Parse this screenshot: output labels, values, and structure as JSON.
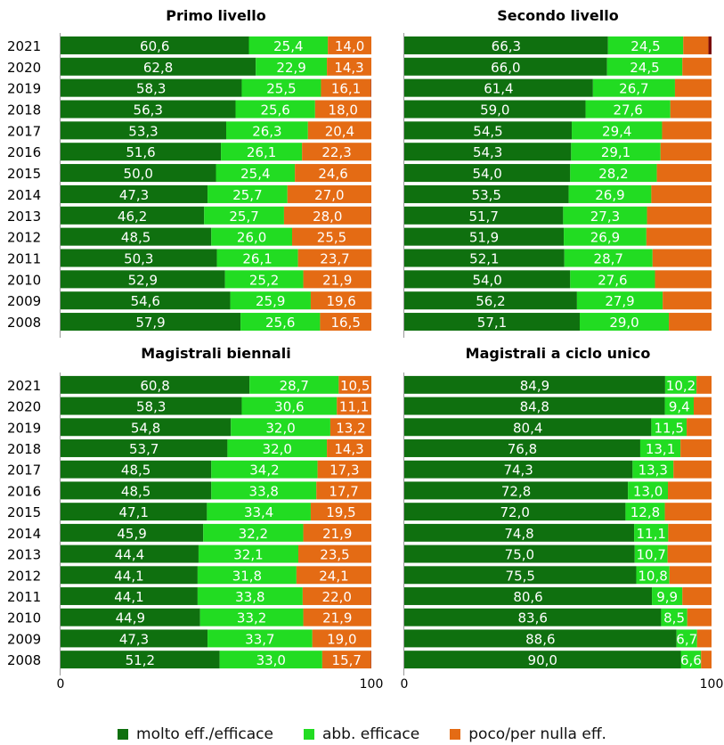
{
  "colors": {
    "molto": "#0f700f",
    "abb": "#22dc22",
    "poco": "#e46b14",
    "rest": "#7a0a0a",
    "bar_label": "#ffffff",
    "text": "#000000",
    "axis": "#9a9a9a"
  },
  "legend": {
    "items": [
      {
        "label": "molto eff./efficace",
        "color": "#0f700f"
      },
      {
        "label": "abb. efficace",
        "color": "#22dc22"
      },
      {
        "label": "poco/per nulla eff.",
        "color": "#e46b14"
      }
    ]
  },
  "chart_data": [
    {
      "type": "bar",
      "orientation": "horizontal-stacked",
      "title": "Primo livello",
      "categories": [
        "2021",
        "2020",
        "2019",
        "2018",
        "2017",
        "2016",
        "2015",
        "2014",
        "2013",
        "2012",
        "2011",
        "2010",
        "2009",
        "2008"
      ],
      "series": [
        {
          "name": "molto eff./efficace",
          "values": [
            60.6,
            62.8,
            58.3,
            56.3,
            53.3,
            51.6,
            50.0,
            47.3,
            46.2,
            48.5,
            50.3,
            52.9,
            54.6,
            57.9
          ]
        },
        {
          "name": "abb. efficace",
          "values": [
            25.4,
            22.9,
            25.5,
            25.6,
            26.3,
            26.1,
            25.4,
            25.7,
            25.7,
            26.0,
            26.1,
            25.2,
            25.9,
            25.6
          ]
        },
        {
          "name": "poco/per nulla eff.",
          "values": [
            14.0,
            14.3,
            16.1,
            18.0,
            20.4,
            22.3,
            24.6,
            27.0,
            28.0,
            25.5,
            23.7,
            21.9,
            19.6,
            16.5
          ]
        }
      ],
      "xlim": [
        0,
        100
      ],
      "xticks": []
    },
    {
      "type": "bar",
      "orientation": "horizontal-stacked",
      "title": "Secondo livello",
      "categories": [
        "2021",
        "2020",
        "2019",
        "2018",
        "2017",
        "2016",
        "2015",
        "2014",
        "2013",
        "2012",
        "2011",
        "2010",
        "2009",
        "2008"
      ],
      "series": [
        {
          "name": "molto eff./efficace",
          "values": [
            66.3,
            66.0,
            61.4,
            59.0,
            54.5,
            54.3,
            54.0,
            53.5,
            51.7,
            51.9,
            52.1,
            54.0,
            56.2,
            57.1
          ]
        },
        {
          "name": "abb. efficace",
          "values": [
            24.5,
            24.5,
            26.7,
            27.6,
            29.4,
            29.1,
            28.2,
            26.9,
            27.3,
            26.9,
            28.7,
            27.6,
            27.9,
            29.0
          ]
        },
        {
          "name": "poco/per nulla eff.",
          "values": [
            8.2,
            9.5,
            11.9,
            13.4,
            16.1,
            16.6,
            17.8,
            19.6,
            21.0,
            21.2,
            19.2,
            18.4,
            15.9,
            13.9
          ],
          "show_labels": false
        }
      ],
      "xlim": [
        0,
        100
      ],
      "xticks": []
    },
    {
      "type": "bar",
      "orientation": "horizontal-stacked",
      "title": "Magistrali biennali",
      "categories": [
        "2021",
        "2020",
        "2019",
        "2018",
        "2017",
        "2016",
        "2015",
        "2014",
        "2013",
        "2012",
        "2011",
        "2010",
        "2009",
        "2008"
      ],
      "series": [
        {
          "name": "molto eff./efficace",
          "values": [
            60.8,
            58.3,
            54.8,
            53.7,
            48.5,
            48.5,
            47.1,
            45.9,
            44.4,
            44.1,
            44.1,
            44.9,
            47.3,
            51.2
          ]
        },
        {
          "name": "abb. efficace",
          "values": [
            28.7,
            30.6,
            32.0,
            32.0,
            34.2,
            33.8,
            33.4,
            32.2,
            32.1,
            31.8,
            33.8,
            33.2,
            33.7,
            33.0
          ]
        },
        {
          "name": "poco/per nulla eff.",
          "values": [
            10.5,
            11.1,
            13.2,
            14.3,
            17.3,
            17.7,
            19.5,
            21.9,
            23.5,
            24.1,
            22.0,
            21.9,
            19.0,
            15.7
          ]
        }
      ],
      "xlim": [
        0,
        100
      ],
      "xticks": [
        "0",
        "100"
      ]
    },
    {
      "type": "bar",
      "orientation": "horizontal-stacked",
      "title": "Magistrali a ciclo unico",
      "categories": [
        "2021",
        "2020",
        "2019",
        "2018",
        "2017",
        "2016",
        "2015",
        "2014",
        "2013",
        "2012",
        "2011",
        "2010",
        "2009",
        "2008"
      ],
      "series": [
        {
          "name": "molto eff./efficace",
          "values": [
            84.9,
            84.8,
            80.4,
            76.8,
            74.3,
            72.8,
            72.0,
            74.8,
            75.0,
            75.5,
            80.6,
            83.6,
            88.6,
            90.0
          ]
        },
        {
          "name": "abb. efficace",
          "values": [
            10.2,
            9.4,
            11.5,
            13.1,
            13.3,
            13.0,
            12.8,
            11.1,
            10.7,
            10.8,
            9.9,
            8.5,
            6.7,
            6.6
          ]
        },
        {
          "name": "poco/per nulla eff.",
          "values": [
            4.9,
            5.8,
            8.1,
            10.1,
            12.4,
            14.2,
            15.2,
            14.1,
            14.3,
            13.7,
            9.5,
            7.9,
            4.7,
            3.4
          ],
          "show_labels": false
        }
      ],
      "xlim": [
        0,
        100
      ],
      "xticks": [
        "0",
        "100"
      ]
    }
  ]
}
